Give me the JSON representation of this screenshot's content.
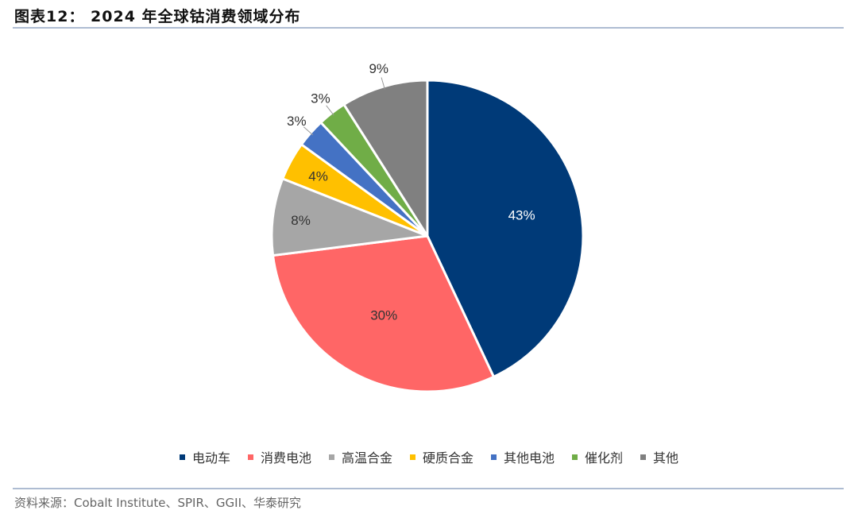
{
  "figure": {
    "title": "图表12：  2024 年全球钴消费领域分布",
    "source_prefix": "资料来源：",
    "source_text": "Cobalt Institute、SPIR、GGII、华泰研究"
  },
  "chart_data": {
    "type": "pie",
    "title": "",
    "categories": [
      "电动车",
      "消费电池",
      "高温合金",
      "硬质合金",
      "其他电池",
      "催化剂",
      "其他"
    ],
    "values": [
      43,
      30,
      8,
      4,
      3,
      3,
      9
    ],
    "labels": [
      "43%",
      "30%",
      "8%",
      "4%",
      "3%",
      "3%",
      "9%"
    ],
    "colors": [
      "#003a78",
      "#ff6666",
      "#a6a6a6",
      "#ffc000",
      "#4472c4",
      "#70ad47",
      "#808080"
    ],
    "label_colors": [
      "#ffffff",
      "#333333",
      "#333333",
      "#333333",
      "#333333",
      "#333333",
      "#333333"
    ],
    "start_angle_deg": 0,
    "direction": "clockwise",
    "legend": "bottom"
  }
}
